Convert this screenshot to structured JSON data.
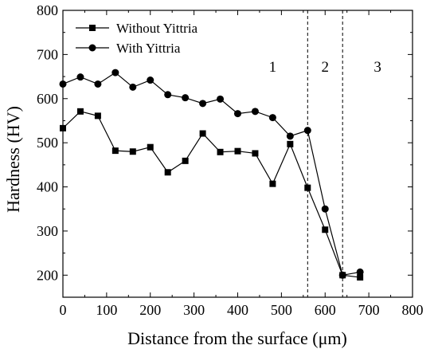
{
  "chart_data": {
    "type": "line",
    "xlabel": "Distance from the surface (μm)",
    "ylabel": "Hardness (HV)",
    "xlim": [
      0,
      800
    ],
    "ylim": [
      150,
      800
    ],
    "x_ticks": [
      "0",
      "100",
      "200",
      "300",
      "400",
      "500",
      "600",
      "700",
      "800"
    ],
    "y_ticks": [
      "200",
      "300",
      "400",
      "500",
      "600",
      "700",
      "800"
    ],
    "grid": false,
    "legend_position": "top-left",
    "series": [
      {
        "name": "Without Yittria",
        "marker": "square",
        "color": "#000000",
        "x": [
          0,
          40,
          80,
          120,
          160,
          200,
          240,
          280,
          320,
          360,
          400,
          440,
          480,
          520,
          560,
          600,
          640,
          680
        ],
        "y": [
          533,
          571,
          561,
          482,
          480,
          490,
          433,
          459,
          521,
          479,
          481,
          476,
          407,
          497,
          398,
          303,
          200,
          195
        ]
      },
      {
        "name": "With Yittria",
        "marker": "circle",
        "color": "#000000",
        "x": [
          0,
          40,
          80,
          120,
          160,
          200,
          240,
          280,
          320,
          360,
          400,
          440,
          480,
          520,
          560,
          600,
          640,
          680
        ],
        "y": [
          633,
          649,
          633,
          659,
          626,
          642,
          609,
          602,
          589,
          599,
          566,
          571,
          557,
          515,
          528,
          350,
          200,
          207
        ]
      }
    ],
    "dividers": [
      560,
      640
    ],
    "region_labels": [
      {
        "text": "1",
        "x": 480
      },
      {
        "text": "2",
        "x": 600
      },
      {
        "text": "3",
        "x": 720
      }
    ]
  }
}
